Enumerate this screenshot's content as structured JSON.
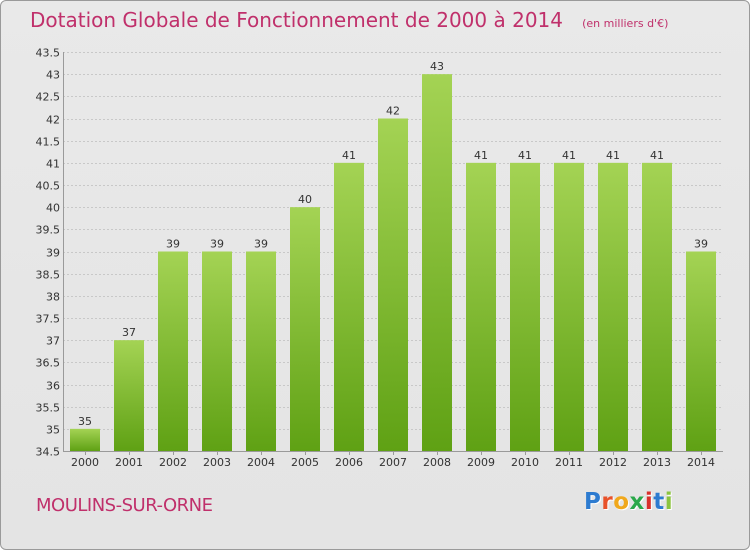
{
  "title": "Dotation Globale de Fonctionnement de 2000 à 2014",
  "unit": "(en milliers d'€)",
  "commune": "MOULINS-SUR-ORNE",
  "logo": "Proxiti",
  "colors": {
    "title": "#c0306b",
    "bar_light": "#a4d354",
    "bar_dark": "#5fa114",
    "grid": "#c8c8c8"
  },
  "chart_data": {
    "type": "bar",
    "categories": [
      "2000",
      "2001",
      "2002",
      "2003",
      "2004",
      "2005",
      "2006",
      "2007",
      "2008",
      "2009",
      "2010",
      "2011",
      "2012",
      "2013",
      "2014"
    ],
    "values": [
      35,
      37,
      39,
      39,
      39,
      40,
      41,
      42,
      43,
      41,
      41,
      41,
      41,
      41,
      39
    ],
    "ylim": [
      34.5,
      43.5
    ],
    "yticks": [
      34.5,
      35,
      35.5,
      36,
      36.5,
      37,
      37.5,
      38,
      38.5,
      39,
      39.5,
      40,
      40.5,
      41,
      41.5,
      42,
      42.5,
      43,
      43.5
    ],
    "grid": true,
    "data_labels": true
  }
}
